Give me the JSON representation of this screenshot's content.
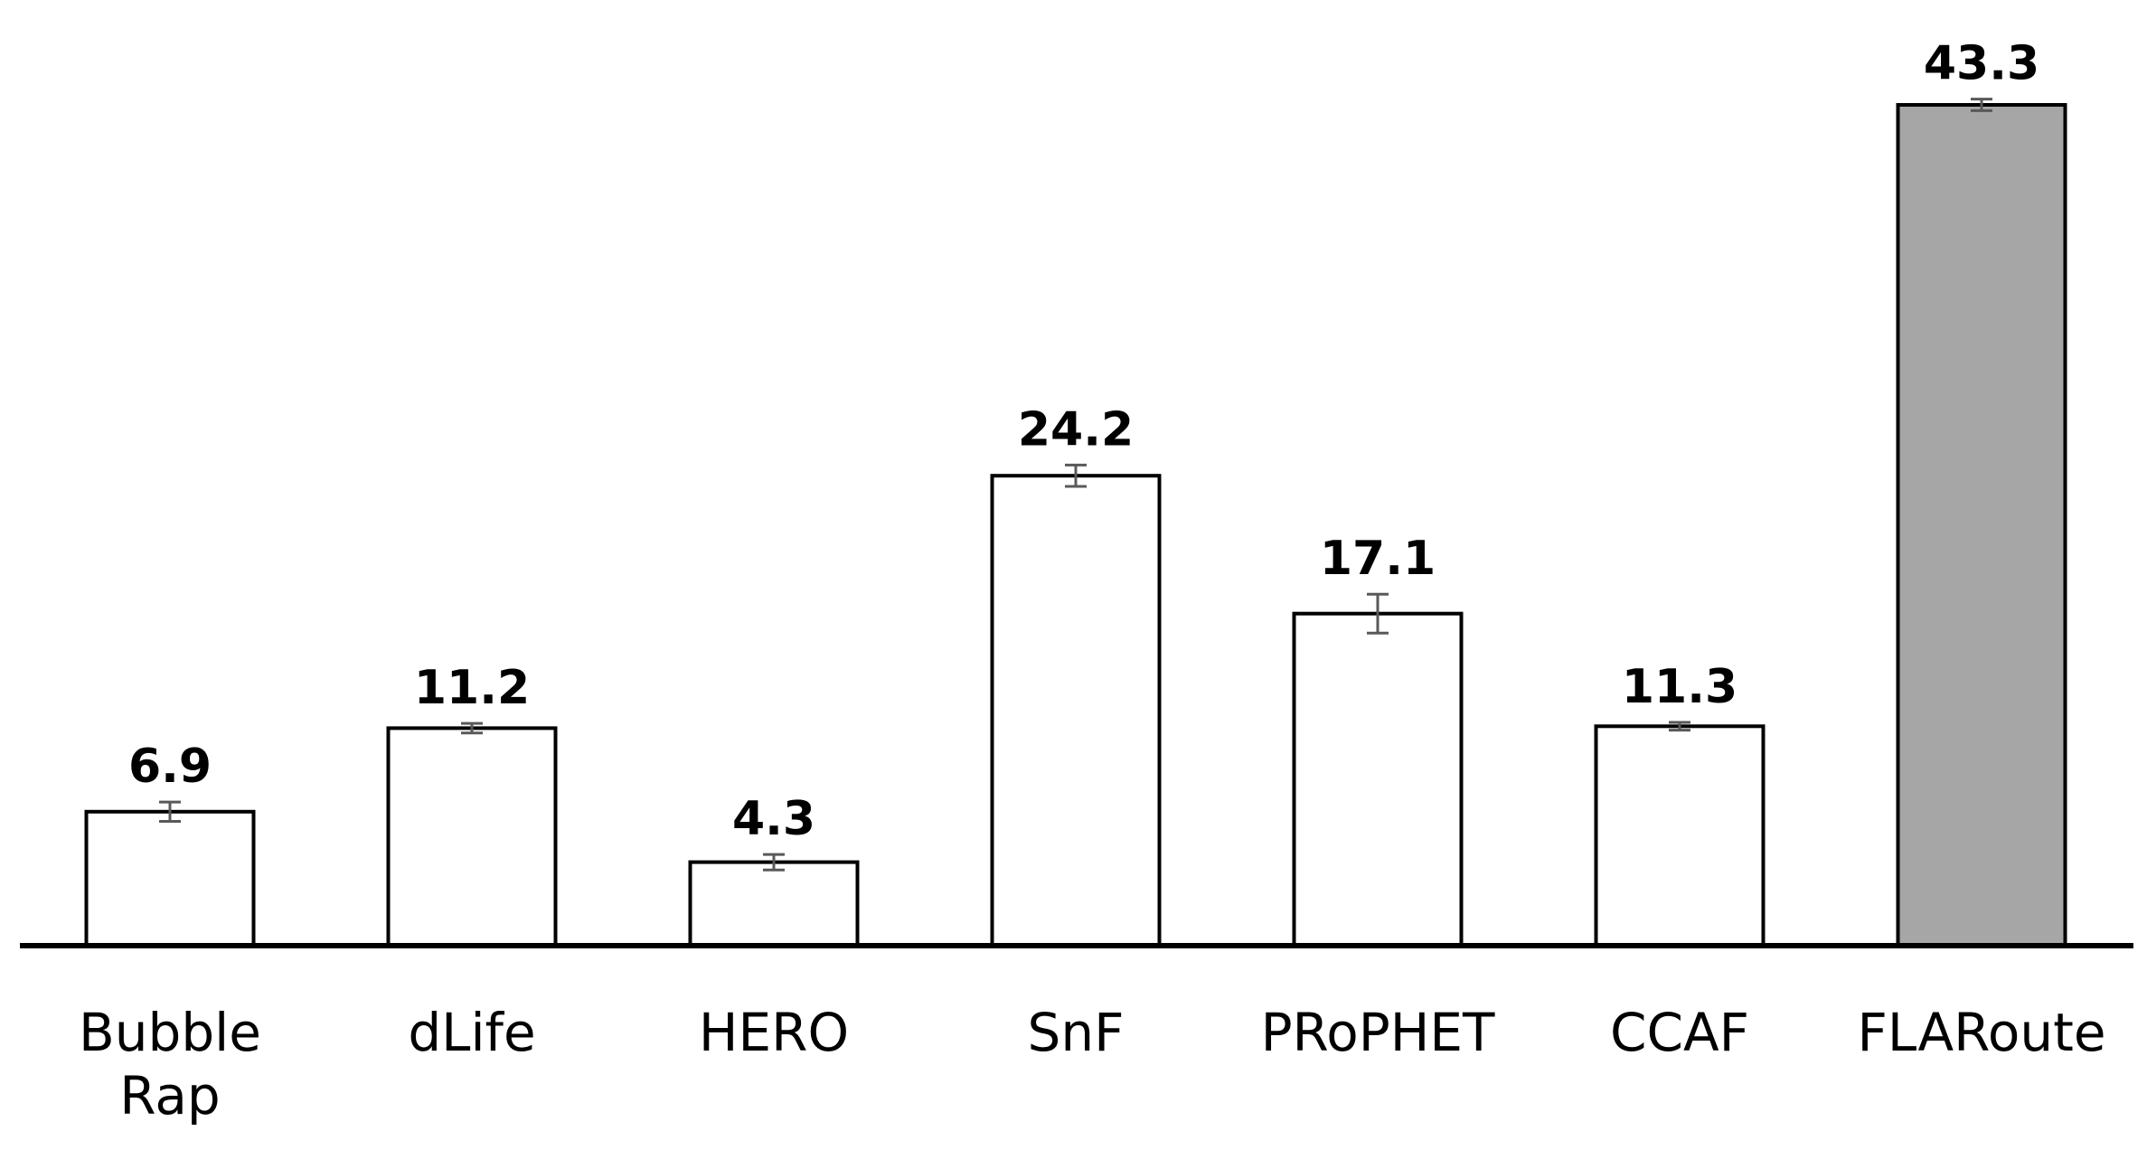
{
  "chart_data": {
    "type": "bar",
    "title": "",
    "xlabel": "",
    "ylabel": "",
    "categories": [
      "Bubble Rap",
      "dLife",
      "HERO",
      "SnF",
      "PRoPHET",
      "CCAF",
      "FLARoute"
    ],
    "category_lines": [
      [
        "Bubble",
        "Rap"
      ],
      [
        "dLife"
      ],
      [
        "HERO"
      ],
      [
        "SnF"
      ],
      [
        "PRoPHET"
      ],
      [
        "CCAF"
      ],
      [
        "FLARoute"
      ]
    ],
    "values": [
      6.9,
      11.2,
      4.3,
      24.2,
      17.1,
      11.3,
      43.3
    ],
    "value_labels": [
      "6.9",
      "11.2",
      "4.3",
      "24.2",
      "17.1",
      "11.3",
      "43.3"
    ],
    "error": [
      0.5,
      0.25,
      0.4,
      0.55,
      1.0,
      0.2,
      0.3
    ],
    "ylim": [
      0,
      43.3
    ],
    "grid": false,
    "legend": "none",
    "bar_fill": [
      "#ffffff",
      "#ffffff",
      "#ffffff",
      "#ffffff",
      "#ffffff",
      "#ffffff",
      "#a6a6a6"
    ],
    "bar_stroke": "#000000",
    "error_color": "#595959"
  }
}
